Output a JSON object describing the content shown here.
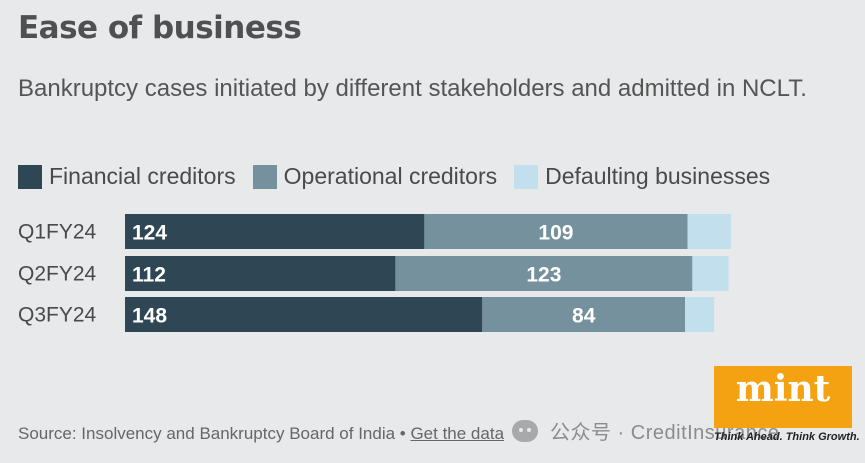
{
  "chart_data": {
    "type": "bar",
    "orientation": "horizontal",
    "stacked": true,
    "title": "Ease of business",
    "subtitle": "Bankruptcy cases initiated by different stakeholders and admitted in NCLT.",
    "categories": [
      "Q1FY24",
      "Q2FY24",
      "Q3FY24"
    ],
    "series": [
      {
        "name": "Financial creditors",
        "values": [
          124,
          112,
          148
        ],
        "color": "#2f4654",
        "label_color": "#ffffff",
        "show_labels": true
      },
      {
        "name": "Operational creditors",
        "values": [
          109,
          123,
          84
        ],
        "color": "#76919e",
        "label_color": "#ffffff",
        "show_labels": true
      },
      {
        "name": "Defaulting businesses",
        "values": [
          18,
          15,
          12
        ],
        "color": "#c2dfed",
        "label_color": "#2f4654",
        "show_labels": false
      }
    ],
    "xlim": [
      0,
      251
    ],
    "grid": false,
    "legend_position": "top-left"
  },
  "footer": {
    "source_text": "Source: Insolvency and Bankruptcy Board of India • ",
    "link_text": "Get the data"
  },
  "watermark": {
    "text": "公众号 · CreditInsurance",
    "icon": "wechat-icon"
  },
  "logo": {
    "word": "mint",
    "tagline": "Think Ahead. Think Growth."
  }
}
